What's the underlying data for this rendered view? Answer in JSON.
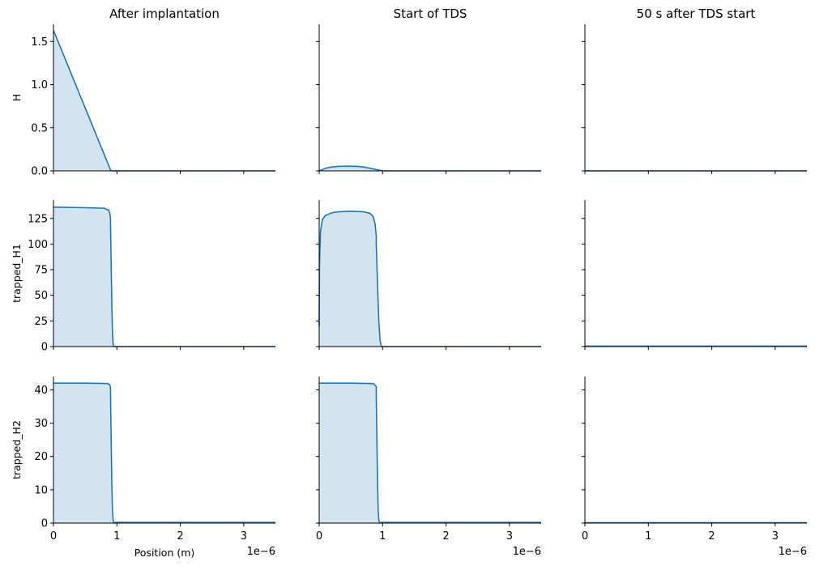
{
  "figure": {
    "column_titles": [
      "After implantation",
      "Start of TDS",
      "50 s after TDS start"
    ],
    "row_labels": [
      "H",
      "trapped_H1",
      "trapped_H2"
    ],
    "xlabel": "Position (m)",
    "x_offset_text": "1e−6",
    "line_color": "#1f77b4",
    "fill_color": "#1f77b4"
  },
  "chart_data": {
    "type": "area",
    "layout": "3x3 grid of small multiples, shared x axis per column, shared y axis per row",
    "x_unit_scale": "1e-6",
    "xlim": [
      0,
      3.5
    ],
    "x_ticks": [
      0,
      1,
      2,
      3
    ],
    "rows": [
      {
        "ylabel": "H",
        "ylim": [
          0,
          1.7
        ],
        "y_ticks": [
          0.0,
          0.5,
          1.0,
          1.5
        ],
        "y_tick_labels": [
          "0.0",
          "0.5",
          "1.0",
          "1.5"
        ],
        "panels": [
          {
            "title": "After implantation",
            "x": [
              0,
              0.9,
              0.92,
              3.5
            ],
            "y": [
              1.63,
              0.01,
              0.0,
              0.0
            ]
          },
          {
            "title": "Start of TDS",
            "x": [
              0,
              0.1,
              0.2,
              0.3,
              0.45,
              0.6,
              0.7,
              0.8,
              0.9,
              1.0,
              3.5
            ],
            "y": [
              0.0,
              0.03,
              0.045,
              0.052,
              0.055,
              0.052,
              0.045,
              0.03,
              0.015,
              0.0,
              0.0
            ]
          },
          {
            "title": "50 s after TDS start",
            "x": [
              0,
              3.5
            ],
            "y": [
              0.0,
              0.0
            ]
          }
        ]
      },
      {
        "ylabel": "trapped_H1",
        "ylim": [
          0,
          143
        ],
        "y_ticks": [
          0,
          25,
          50,
          75,
          100,
          125
        ],
        "y_tick_labels": [
          "0",
          "25",
          "50",
          "75",
          "100",
          "125"
        ],
        "panels": [
          {
            "title": "After implantation",
            "x": [
              0,
              0.5,
              0.8,
              0.87,
              0.89,
              0.9,
              0.9,
              0.91,
              0.92,
              0.93,
              0.94,
              0.95,
              3.5
            ],
            "y": [
              136,
              135.5,
              135,
              133,
              130,
              123,
              118,
              80,
              40,
              15,
              3,
              0,
              0
            ]
          },
          {
            "title": "Start of TDS",
            "x": [
              0,
              0.005,
              0.02,
              0.05,
              0.1,
              0.2,
              0.3,
              0.5,
              0.7,
              0.8,
              0.85,
              0.88,
              0.9,
              0.9,
              0.92,
              0.94,
              0.96,
              0.98,
              3.5
            ],
            "y": [
              20,
              80,
              112,
              124,
              128,
              130.5,
              131.5,
              132,
              131.5,
              130,
              127,
              120,
              108,
              100,
              60,
              25,
              6,
              0,
              0
            ]
          },
          {
            "title": "50 s after TDS start",
            "x": [
              0,
              3.5
            ],
            "y": [
              0.5,
              0.5
            ]
          }
        ]
      },
      {
        "ylabel": "trapped_H2",
        "ylim": [
          0,
          44
        ],
        "y_ticks": [
          0,
          10,
          20,
          30,
          40
        ],
        "y_tick_labels": [
          "0",
          "10",
          "20",
          "30",
          "40"
        ],
        "panels": [
          {
            "title": "After implantation",
            "x": [
              0,
              0.5,
              0.85,
              0.89,
              0.9,
              0.9,
              0.91,
              0.92,
              0.93,
              0.94,
              0.95,
              3.5
            ],
            "y": [
              42,
              42,
              41.9,
              41.5,
              40.5,
              38,
              25,
              12,
              4,
              1,
              0.2,
              0.2
            ]
          },
          {
            "title": "Start of TDS",
            "x": [
              0,
              0.5,
              0.85,
              0.9,
              0.9,
              0.91,
              0.92,
              0.93,
              0.94,
              0.95,
              3.5
            ],
            "y": [
              42,
              42,
              41.9,
              41,
              38,
              25,
              12,
              4,
              1,
              0.2,
              0.2
            ]
          },
          {
            "title": "50 s after TDS start",
            "x": [
              0,
              3.5
            ],
            "y": [
              0.1,
              0.1
            ]
          }
        ]
      }
    ]
  }
}
